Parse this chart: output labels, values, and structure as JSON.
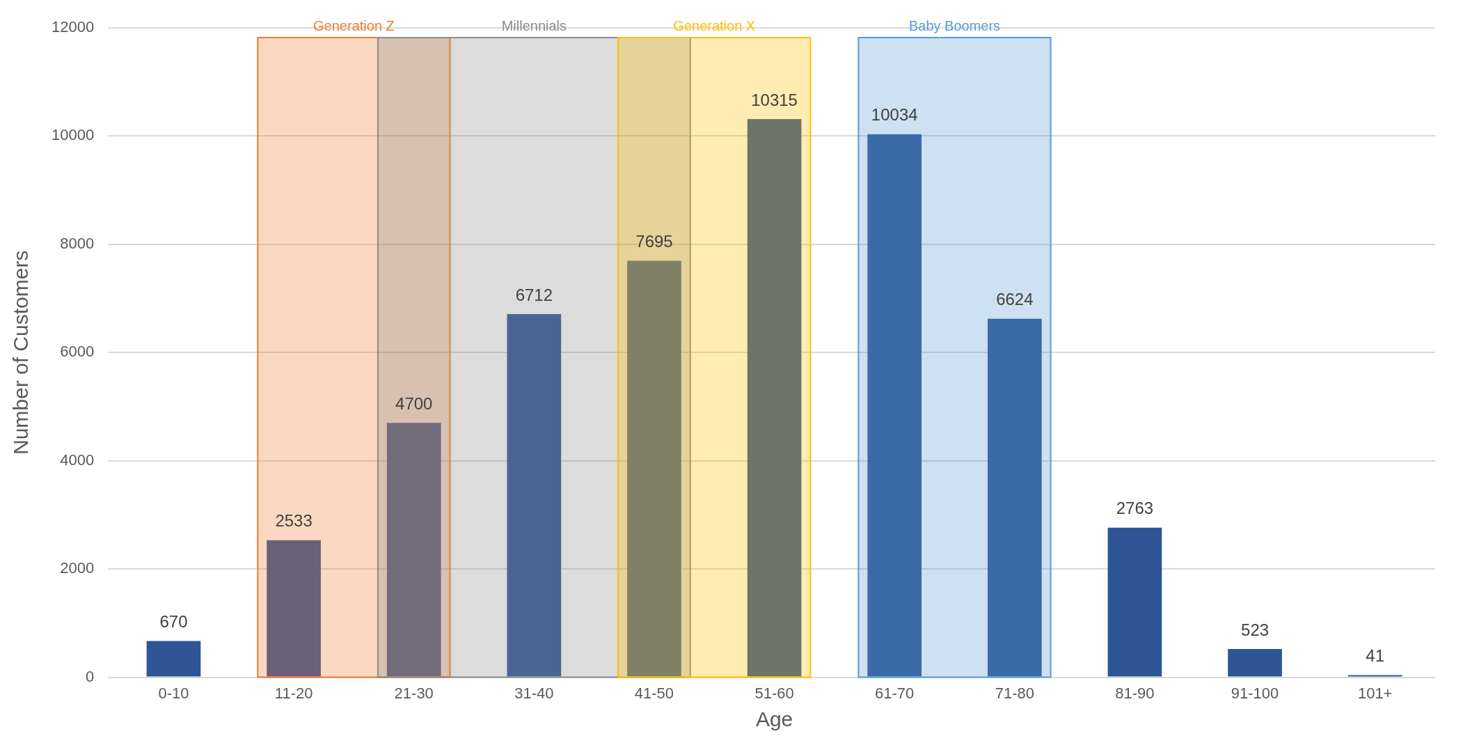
{
  "chart_data": {
    "type": "bar",
    "xlabel": "Age",
    "ylabel": "Number of Customers",
    "categories": [
      "0-10",
      "11-20",
      "21-30",
      "31-40",
      "41-50",
      "51-60",
      "61-70",
      "71-80",
      "81-90",
      "91-100",
      "101+"
    ],
    "values": [
      670,
      2533,
      4700,
      6712,
      7695,
      10315,
      10034,
      6624,
      2763,
      523,
      41
    ],
    "color": "#2f5597",
    "ylim": [
      0,
      12000
    ],
    "yticks": [
      0,
      2000,
      4000,
      6000,
      8000,
      10000,
      12000
    ],
    "grid": "y",
    "data_labels": true,
    "bands": [
      {
        "axis": "x",
        "from": "11-20",
        "to": "21-30",
        "label": "Generation Z",
        "color": "#ed7d31"
      },
      {
        "axis": "x",
        "from": "21-30",
        "to": "41-50",
        "label": "Millennials",
        "color": "#8c8c8c"
      },
      {
        "axis": "x",
        "from": "41-50",
        "to": "51-60",
        "label": "Generation X",
        "color": "#ffc000"
      },
      {
        "axis": "x",
        "from": "61-70",
        "to": "71-80",
        "label": "Baby Boomers",
        "color": "#5b9bd5"
      }
    ]
  }
}
